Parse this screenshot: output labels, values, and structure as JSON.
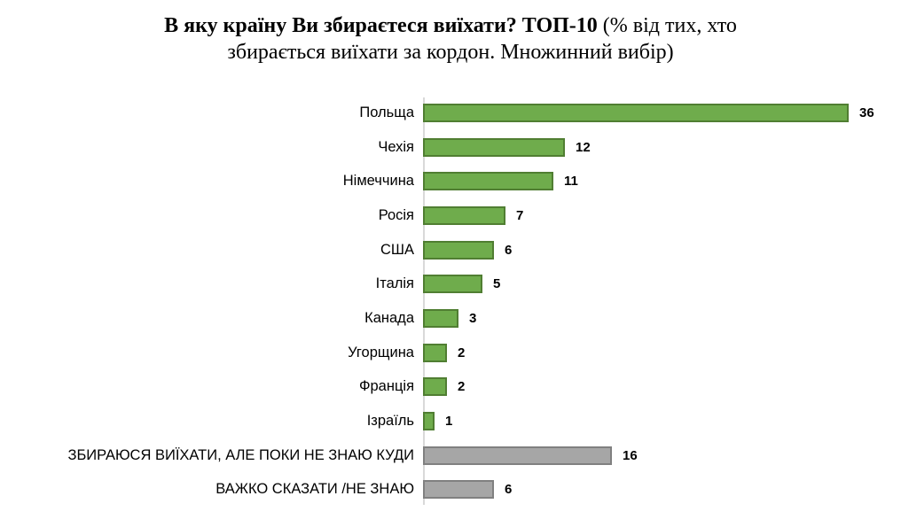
{
  "chart_data": {
    "type": "bar",
    "orientation": "horizontal",
    "title": {
      "line1_bold": "В яку країну Ви збираєтеся виїхати? ТОП-10",
      "line1_regular": " (% від тих, хто",
      "line2": "збирається виїхати за кордон. Множинний вибір)",
      "full": "В яку країну Ви збираєтеся виїхати? ТОП-10 (% від тих, хто збирається виїхати за кордон. Множинний вибір)"
    },
    "xlabel": "",
    "ylabel": "",
    "xlim": [
      0,
      36
    ],
    "grid": false,
    "legend": "none",
    "value_labels": "bold, right of bar end",
    "categories": [
      "Польща",
      "Чехія",
      "Німеччина",
      "Росія",
      "США",
      "Італія",
      "Канада",
      "Угорщина",
      "Франція",
      "Ізраїль",
      "ЗБИРАЮСЯ ВИЇХАТИ, АЛЕ ПОКИ НЕ ЗНАЮ КУДИ",
      "ВАЖКО СКАЗАТИ /НЕ ЗНАЮ"
    ],
    "values": [
      36,
      12,
      11,
      7,
      6,
      5,
      3,
      2,
      2,
      1,
      16,
      6
    ],
    "items": [
      {
        "label": "Польща",
        "value": 36,
        "group": "country"
      },
      {
        "label": "Чехія",
        "value": 12,
        "group": "country"
      },
      {
        "label": "Німеччина",
        "value": 11,
        "group": "country"
      },
      {
        "label": "Росія",
        "value": 7,
        "group": "country"
      },
      {
        "label": "США",
        "value": 6,
        "group": "country"
      },
      {
        "label": "Італія",
        "value": 5,
        "group": "country"
      },
      {
        "label": "Канада",
        "value": 3,
        "group": "country"
      },
      {
        "label": "Угорщина",
        "value": 2,
        "group": "country"
      },
      {
        "label": "Франція",
        "value": 2,
        "group": "country"
      },
      {
        "label": "Ізраїль",
        "value": 1,
        "group": "country"
      },
      {
        "label": "ЗБИРАЮСЯ ВИЇХАТИ, АЛЕ ПОКИ НЕ ЗНАЮ КУДИ",
        "value": 16,
        "group": "other"
      },
      {
        "label": "ВАЖКО СКАЗАТИ /НЕ ЗНАЮ",
        "value": 6,
        "group": "other"
      }
    ],
    "colors": {
      "country_fill": "#6FAC4C",
      "country_border": "#507E32",
      "other_fill": "#A6A6A6",
      "other_border": "#808080",
      "axis_line": "#D9D9D9",
      "text": "#000000"
    }
  }
}
